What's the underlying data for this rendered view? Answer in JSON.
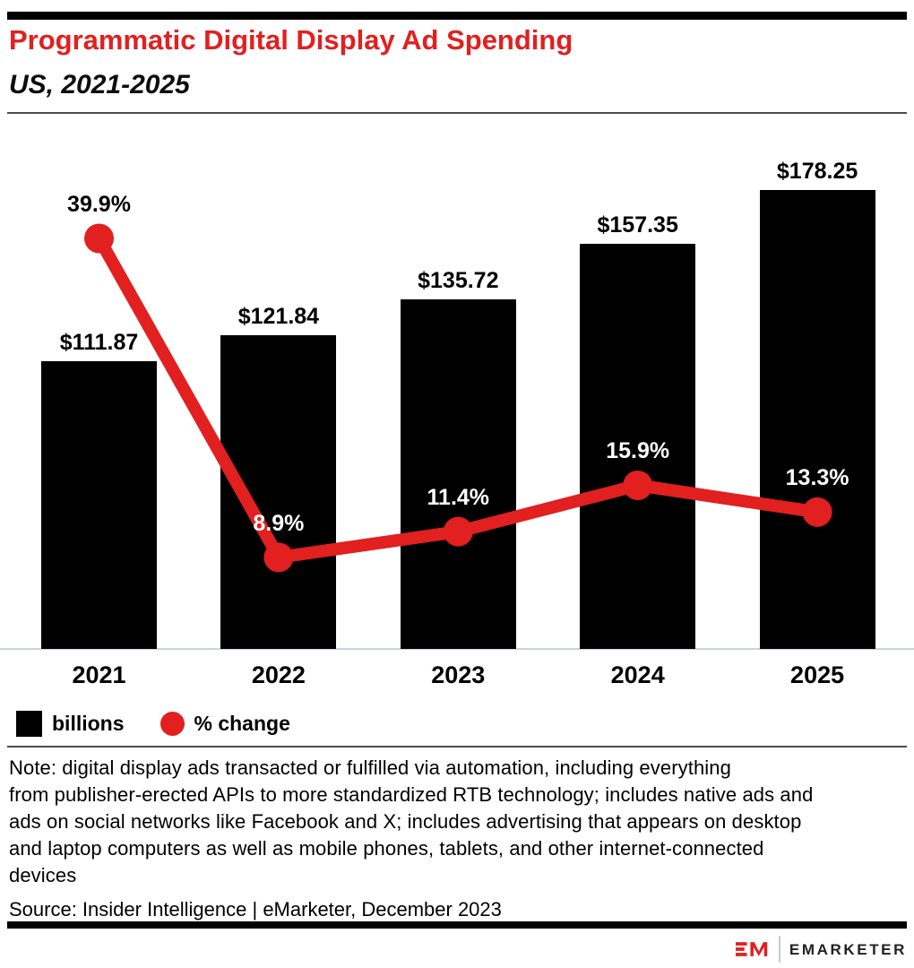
{
  "header": {
    "title": "Programmatic Digital Display Ad Spending",
    "subtitle": "US, 2021-2025"
  },
  "colors": {
    "accent_red": "#e1201f",
    "bar_black": "#000000",
    "baseline_axis": "#c9d3e6",
    "rule_gray": "#4d4d4d",
    "white": "#ffffff"
  },
  "chart_data": {
    "type": "combo-bar-line",
    "title": "Programmatic Digital Display Ad Spending",
    "subtitle": "US, 2021-2025",
    "categories": [
      "2021",
      "2022",
      "2023",
      "2024",
      "2025"
    ],
    "series": [
      {
        "name": "billions",
        "type": "bar",
        "color": "#000000",
        "values": [
          111.87,
          121.84,
          135.72,
          157.35,
          178.25
        ],
        "labels": [
          "$111.87",
          "$121.84",
          "$135.72",
          "$157.35",
          "$178.25"
        ],
        "label_color": "#000000"
      },
      {
        "name": "% change",
        "type": "line",
        "color": "#e1201f",
        "values": [
          39.9,
          8.9,
          11.4,
          15.9,
          13.3
        ],
        "labels": [
          "39.9%",
          "8.9%",
          "11.4%",
          "15.9%",
          "13.3%"
        ],
        "label_colors": [
          "#000000",
          "#ffffff",
          "#ffffff",
          "#ffffff",
          "#ffffff"
        ]
      }
    ],
    "left_axis": {
      "min": 0,
      "max": 200,
      "unit": "$ billions",
      "ticks_visible": false
    },
    "right_axis": {
      "min": 0,
      "max": 50,
      "unit": "%",
      "ticks_visible": false
    },
    "gridlines": false,
    "legend_position": "bottom-left"
  },
  "legend": {
    "items": [
      {
        "label": "billions",
        "swatch": "square",
        "color": "#000000"
      },
      {
        "label": "% change",
        "swatch": "circle",
        "color": "#e1201f"
      }
    ]
  },
  "note": {
    "lines": [
      "Note: digital display ads transacted or fulfilled via automation, including everything",
      "from publisher-erected APIs to more standardized RTB technology; includes native ads and",
      "ads on social networks like Facebook and X; includes advertising that appears on desktop",
      "and laptop computers as well as mobile phones, tablets, and other internet-connected",
      "devices"
    ]
  },
  "source": "Source: Insider Intelligence | eMarketer, December 2023",
  "footer": {
    "logo": "EM",
    "brand": "EMARKETER"
  }
}
